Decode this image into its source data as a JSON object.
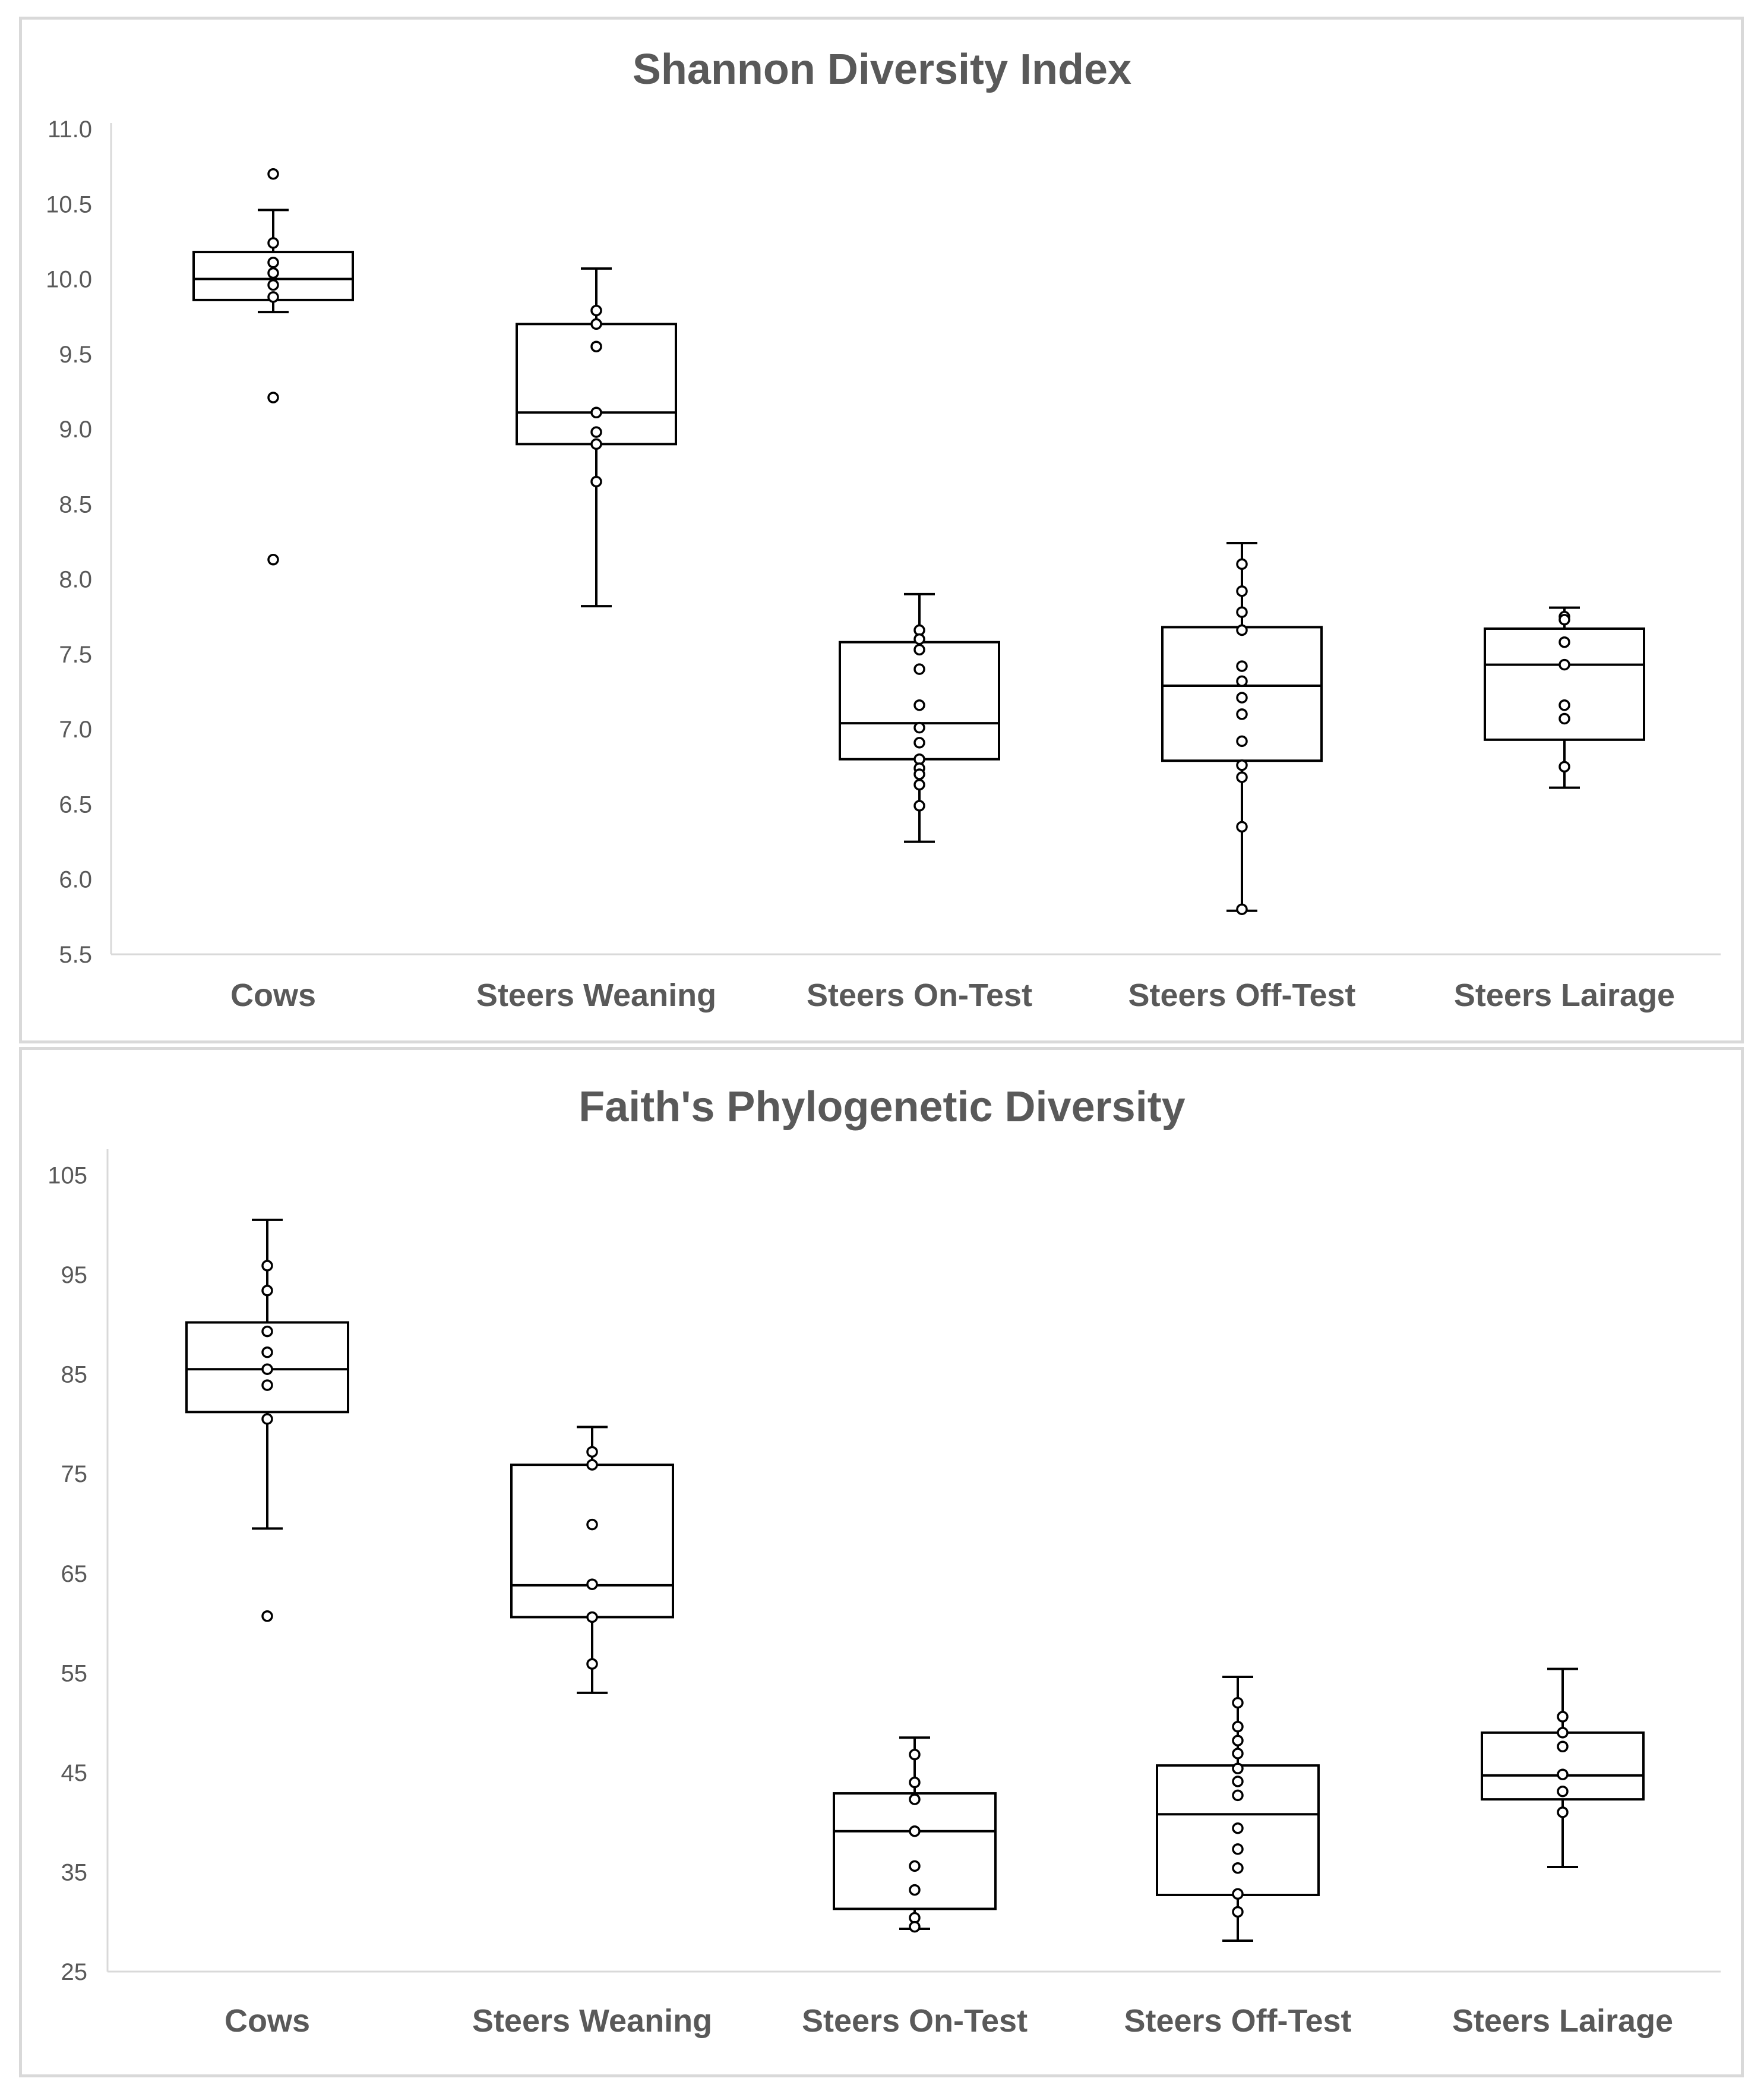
{
  "chart_data": [
    {
      "type": "box",
      "title": "Shannon Diversity Index",
      "xlabel": "",
      "ylabel": "",
      "ylim": [
        5.5,
        11.0
      ],
      "yticks": [
        "5.5",
        "6.0",
        "6.5",
        "7.0",
        "7.5",
        "8.0",
        "8.5",
        "9.0",
        "9.5",
        "10.0",
        "10.5",
        "11.0"
      ],
      "categories": [
        "Cows",
        "Steers Weaning",
        "Steers On-Test",
        "Steers Off-Test",
        "Steers Lairage"
      ],
      "boxes": [
        {
          "whisker_low": 9.78,
          "q1": 9.86,
          "median": 10.0,
          "q3": 10.18,
          "whisker_high": 10.46,
          "points": [
            10.7,
            10.24,
            10.11,
            10.04,
            9.96,
            9.88,
            9.21,
            8.13
          ]
        },
        {
          "whisker_low": 7.82,
          "q1": 8.9,
          "median": 9.11,
          "q3": 9.7,
          "whisker_high": 10.07,
          "points": [
            9.79,
            9.7,
            9.55,
            9.11,
            8.98,
            8.9,
            8.65
          ]
        },
        {
          "whisker_low": 6.25,
          "q1": 6.8,
          "median": 7.04,
          "q3": 7.58,
          "whisker_high": 7.9,
          "points": [
            7.66,
            7.6,
            7.53,
            7.4,
            7.16,
            7.01,
            6.91,
            6.8,
            6.74,
            6.7,
            6.63,
            6.49
          ]
        },
        {
          "whisker_low": 5.79,
          "q1": 6.79,
          "median": 7.29,
          "q3": 7.68,
          "whisker_high": 8.24,
          "points": [
            8.1,
            7.92,
            7.78,
            7.66,
            7.42,
            7.32,
            7.21,
            7.1,
            6.92,
            6.76,
            6.68,
            6.35,
            5.8
          ]
        },
        {
          "whisker_low": 6.61,
          "q1": 6.93,
          "median": 7.43,
          "q3": 7.67,
          "whisker_high": 7.81,
          "points": [
            7.75,
            7.73,
            7.58,
            7.43,
            7.16,
            7.07,
            6.75
          ]
        }
      ]
    },
    {
      "type": "box",
      "title": "Faith's Phylogenetic Diversity",
      "xlabel": "",
      "ylabel": "",
      "ylim": [
        25,
        107
      ],
      "yticks": [
        "25",
        "35",
        "45",
        "55",
        "65",
        "75",
        "85",
        "95",
        "105"
      ],
      "categories": [
        "Cows",
        "Steers Weaning",
        "Steers On-Test",
        "Steers Off-Test",
        "Steers Lairage"
      ],
      "boxes": [
        {
          "whisker_low": 69.5,
          "q1": 81.2,
          "median": 85.5,
          "q3": 90.2,
          "whisker_high": 100.5,
          "points": [
            95.9,
            93.4,
            89.3,
            87.2,
            85.5,
            83.9,
            80.5,
            60.7
          ]
        },
        {
          "whisker_low": 53.0,
          "q1": 60.6,
          "median": 63.8,
          "q3": 75.9,
          "whisker_high": 79.7,
          "points": [
            77.2,
            75.9,
            69.9,
            63.9,
            60.6,
            55.9
          ]
        },
        {
          "whisker_low": 29.3,
          "q1": 31.3,
          "median": 39.1,
          "q3": 42.9,
          "whisker_high": 48.5,
          "points": [
            46.8,
            44.0,
            42.3,
            39.1,
            35.6,
            33.2,
            30.4,
            29.5
          ]
        },
        {
          "whisker_low": 28.1,
          "q1": 32.7,
          "median": 40.8,
          "q3": 45.7,
          "whisker_high": 54.6,
          "points": [
            52.0,
            49.6,
            48.2,
            46.9,
            45.4,
            44.1,
            42.7,
            39.4,
            37.3,
            35.4,
            32.8,
            31.0
          ]
        },
        {
          "whisker_low": 35.5,
          "q1": 42.3,
          "median": 44.7,
          "q3": 49.0,
          "whisker_high": 55.4,
          "points": [
            50.6,
            49.0,
            47.6,
            44.8,
            43.1,
            41.0
          ]
        }
      ]
    }
  ]
}
